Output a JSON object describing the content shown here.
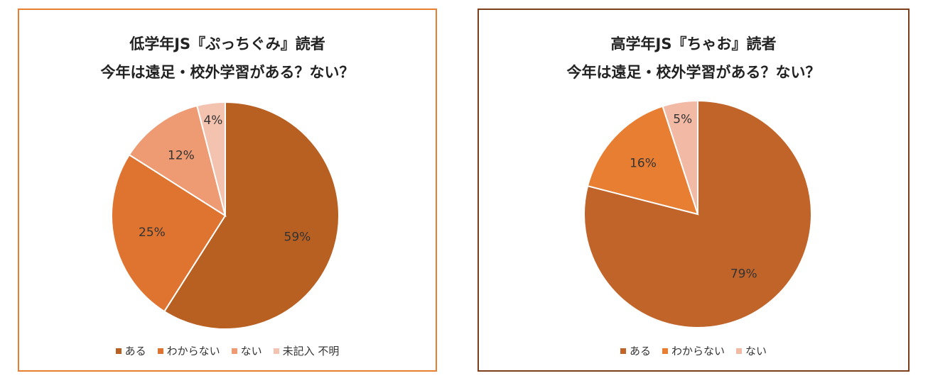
{
  "chart_data": [
    {
      "type": "pie",
      "title": "低学年JS『ぷっちぐみ』読者",
      "subtitle": "今年は遠足・校外学習がある？ない？",
      "categories": [
        "ある",
        "わからない",
        "ない",
        "未記入 不明"
      ],
      "values": [
        59,
        25,
        12,
        4
      ],
      "labels": [
        "59%",
        "25%",
        "12%",
        "4%"
      ],
      "colors": [
        "#B85F22",
        "#DE7430",
        "#EE9A72",
        "#F3C3B0"
      ],
      "legend": "bottom"
    },
    {
      "type": "pie",
      "title": "高学年JS『ちゃお』読者",
      "subtitle": "今年は遠足・校外学習がある？ない？",
      "categories": [
        "ある",
        "わからない",
        "ない"
      ],
      "values": [
        79,
        16,
        5
      ],
      "labels": [
        "79%",
        "16%",
        "5%"
      ],
      "colors": [
        "#C0642A",
        "#E87E32",
        "#F2B9A5"
      ],
      "legend": "bottom"
    }
  ]
}
